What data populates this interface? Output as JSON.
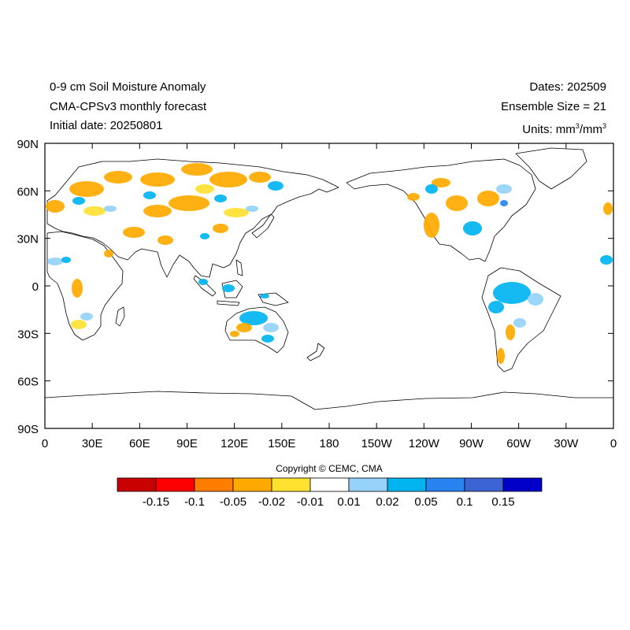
{
  "titles": {
    "left": [
      "0-9 cm Soil Moisture Anomaly",
      "CMA-CPSv3 monthly forecast",
      "Initial date: 20250801"
    ],
    "right_dates": "Dates: 202509",
    "right_ensemble": "Ensemble Size = 21",
    "units_prefix": "Units: mm",
    "units_mid": "/mm",
    "units_exp": "3"
  },
  "axes": {
    "lat_labels": [
      "90N",
      "60N",
      "30N",
      "0",
      "30S",
      "60S",
      "90S"
    ],
    "lon_labels": [
      "0",
      "30E",
      "60E",
      "90E",
      "120E",
      "150E",
      "180",
      "150W",
      "120W",
      "90W",
      "60W",
      "30W",
      "0"
    ]
  },
  "colorbar": {
    "copyright": "Copyright © CEMC, CMA",
    "colors": [
      "#c80000",
      "#ff0000",
      "#ff7d00",
      "#ffaa00",
      "#ffe132",
      "#ffffff",
      "#96d2fa",
      "#00b4f0",
      "#2882f0",
      "#3c64d2",
      "#0000c8"
    ],
    "labels": [
      "-0.15",
      "-0.1",
      "-0.05",
      "-0.02",
      "-0.01",
      "0.01",
      "0.02",
      "0.05",
      "0.1",
      "0.15"
    ]
  },
  "map_colors": {
    "dry": "#ffaa00",
    "dry_light": "#ffe132",
    "wet": "#00b4f0",
    "wet_light": "#96d2fa",
    "wet_strong": "#2882f0",
    "coast": "#000000"
  }
}
